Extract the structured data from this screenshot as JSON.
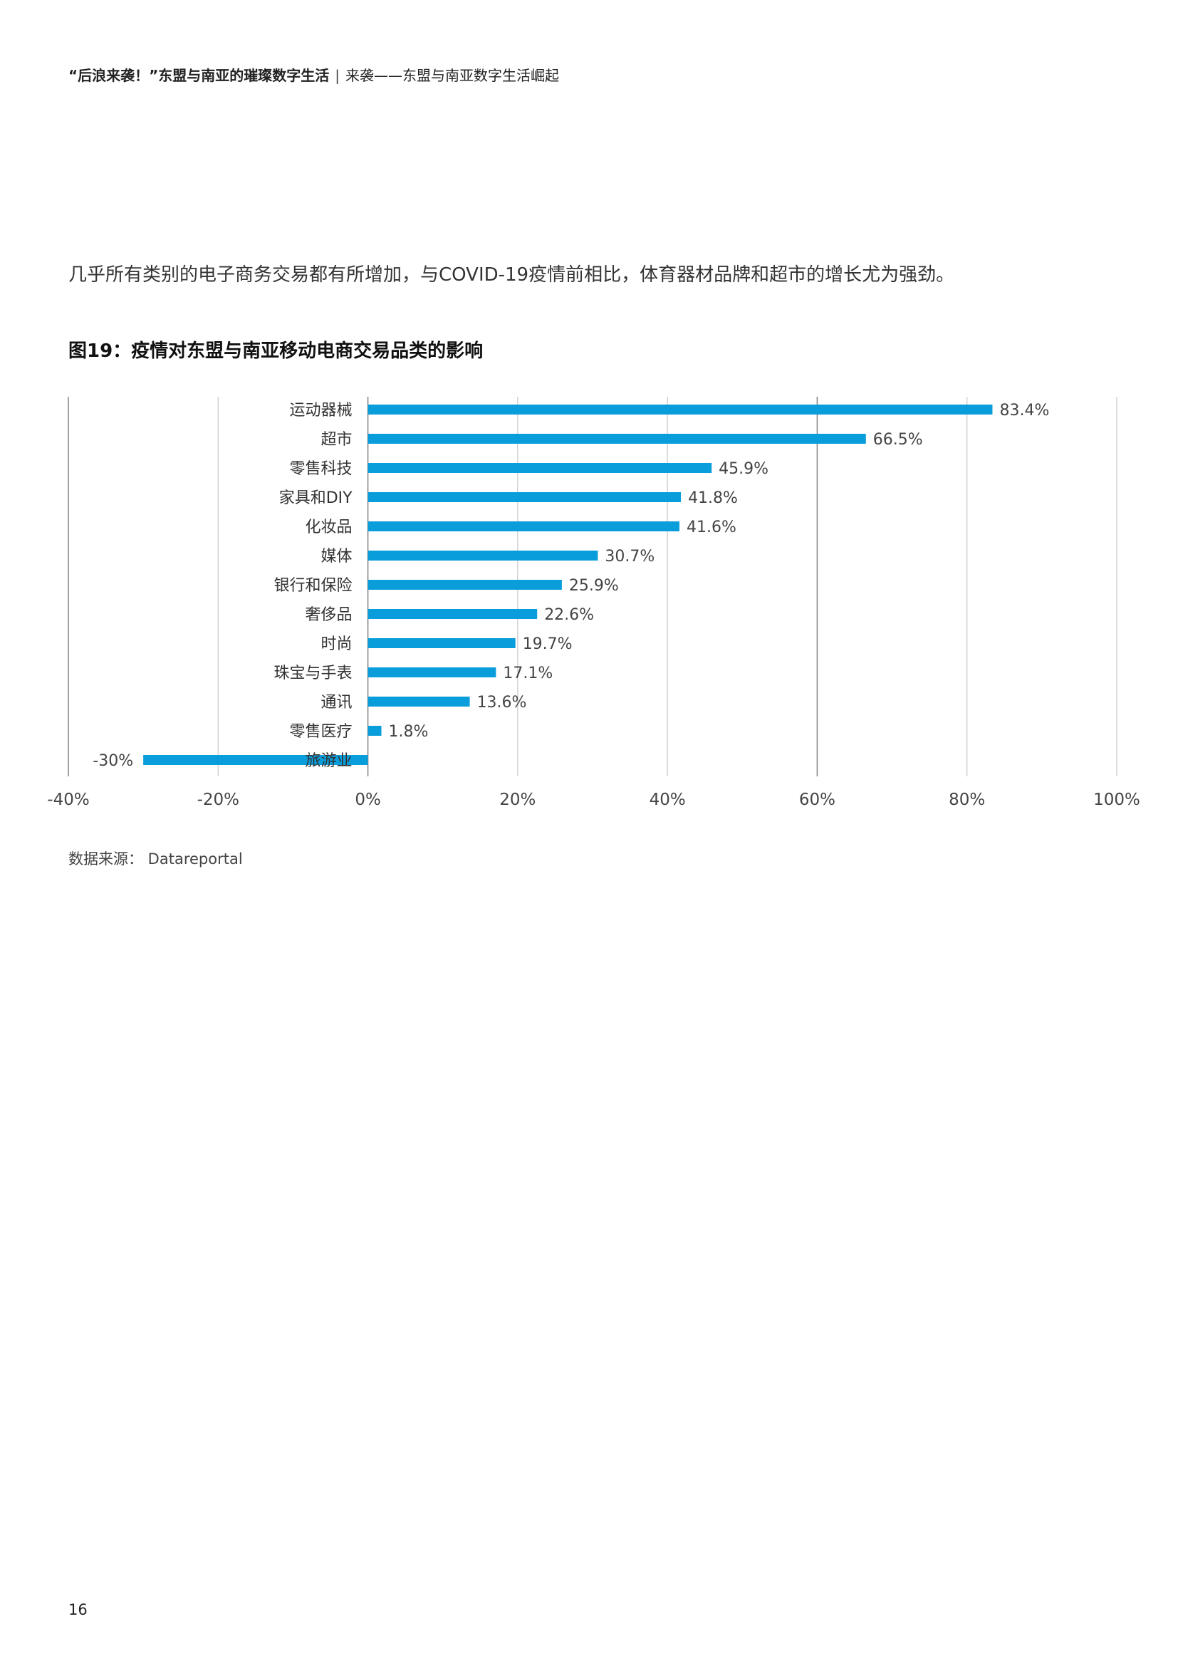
{
  "header": {
    "title_bold": "“后浪来袭！”东盟与南亚的璀璨数字生活",
    "separator": "|",
    "subtitle": "来袭——东盟与南亚数字生活崛起"
  },
  "intro_text": "几乎所有类别的电子商务交易都有所增加，与COVID-19疫情前相比，体育器材品牌和超市的增长尤为强劲。",
  "figure_title": "图19：疫情对东盟与南亚移动电商交易品类的影响",
  "source_text": "数据来源： Datareportal",
  "page_number": "16",
  "chart_data": {
    "type": "bar",
    "orientation": "horizontal",
    "categories": [
      "运动器械",
      "超市",
      "零售科技",
      "家具和DIY",
      "化妆品",
      "媒体",
      "银行和保险",
      "奢侈品",
      "时尚",
      "珠宝与手表",
      "通讯",
      "零售医疗",
      "旅游业"
    ],
    "values": [
      83.4,
      66.5,
      45.9,
      41.8,
      41.6,
      30.7,
      25.9,
      22.6,
      19.7,
      17.1,
      13.6,
      1.8,
      -30
    ],
    "value_labels": [
      "83.4%",
      "66.5%",
      "45.9%",
      "41.8%",
      "41.6%",
      "30.7%",
      "25.9%",
      "22.6%",
      "19.7%",
      "17.1%",
      "13.6%",
      "1.8%",
      "-30%"
    ],
    "xlim": [
      -40,
      100
    ],
    "xticks": [
      -40,
      -20,
      0,
      20,
      40,
      60,
      80,
      100
    ],
    "xtick_labels": [
      "-40%",
      "-20%",
      "0%",
      "20%",
      "40%",
      "60%",
      "80%",
      "100%"
    ],
    "grid": "vertical",
    "bar_color": "#0a9ddb",
    "grid_color": "#c8c8c8",
    "title": "",
    "xlabel": "",
    "ylabel": ""
  }
}
